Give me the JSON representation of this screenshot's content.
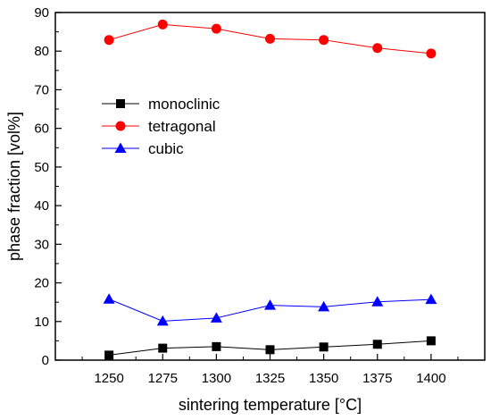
{
  "chart_data": {
    "type": "line",
    "title": "",
    "xlabel": "sintering temperature [°C]",
    "ylabel": "phase fraction [vol%]",
    "x": [
      1250,
      1275,
      1300,
      1325,
      1350,
      1375,
      1400
    ],
    "xlim": [
      1225,
      1425
    ],
    "ylim": [
      0,
      90
    ],
    "xticks": [
      1250,
      1275,
      1300,
      1325,
      1350,
      1375,
      1400
    ],
    "yticks": [
      0,
      10,
      20,
      30,
      40,
      50,
      60,
      70,
      80,
      90
    ],
    "grid": false,
    "legend_position": "upper-left",
    "series": [
      {
        "name": "monoclinic",
        "color": "#000000",
        "marker": "square",
        "values": [
          1.3,
          3.1,
          3.5,
          2.7,
          3.4,
          4.1,
          5.0
        ]
      },
      {
        "name": "tetragonal",
        "color": "#ff0000",
        "marker": "circle",
        "values": [
          82.9,
          86.9,
          85.8,
          83.2,
          82.9,
          80.8,
          79.4
        ]
      },
      {
        "name": "cubic",
        "color": "#0000ff",
        "marker": "triangle",
        "values": [
          15.8,
          10.1,
          10.9,
          14.2,
          13.8,
          15.1,
          15.7
        ]
      }
    ]
  }
}
